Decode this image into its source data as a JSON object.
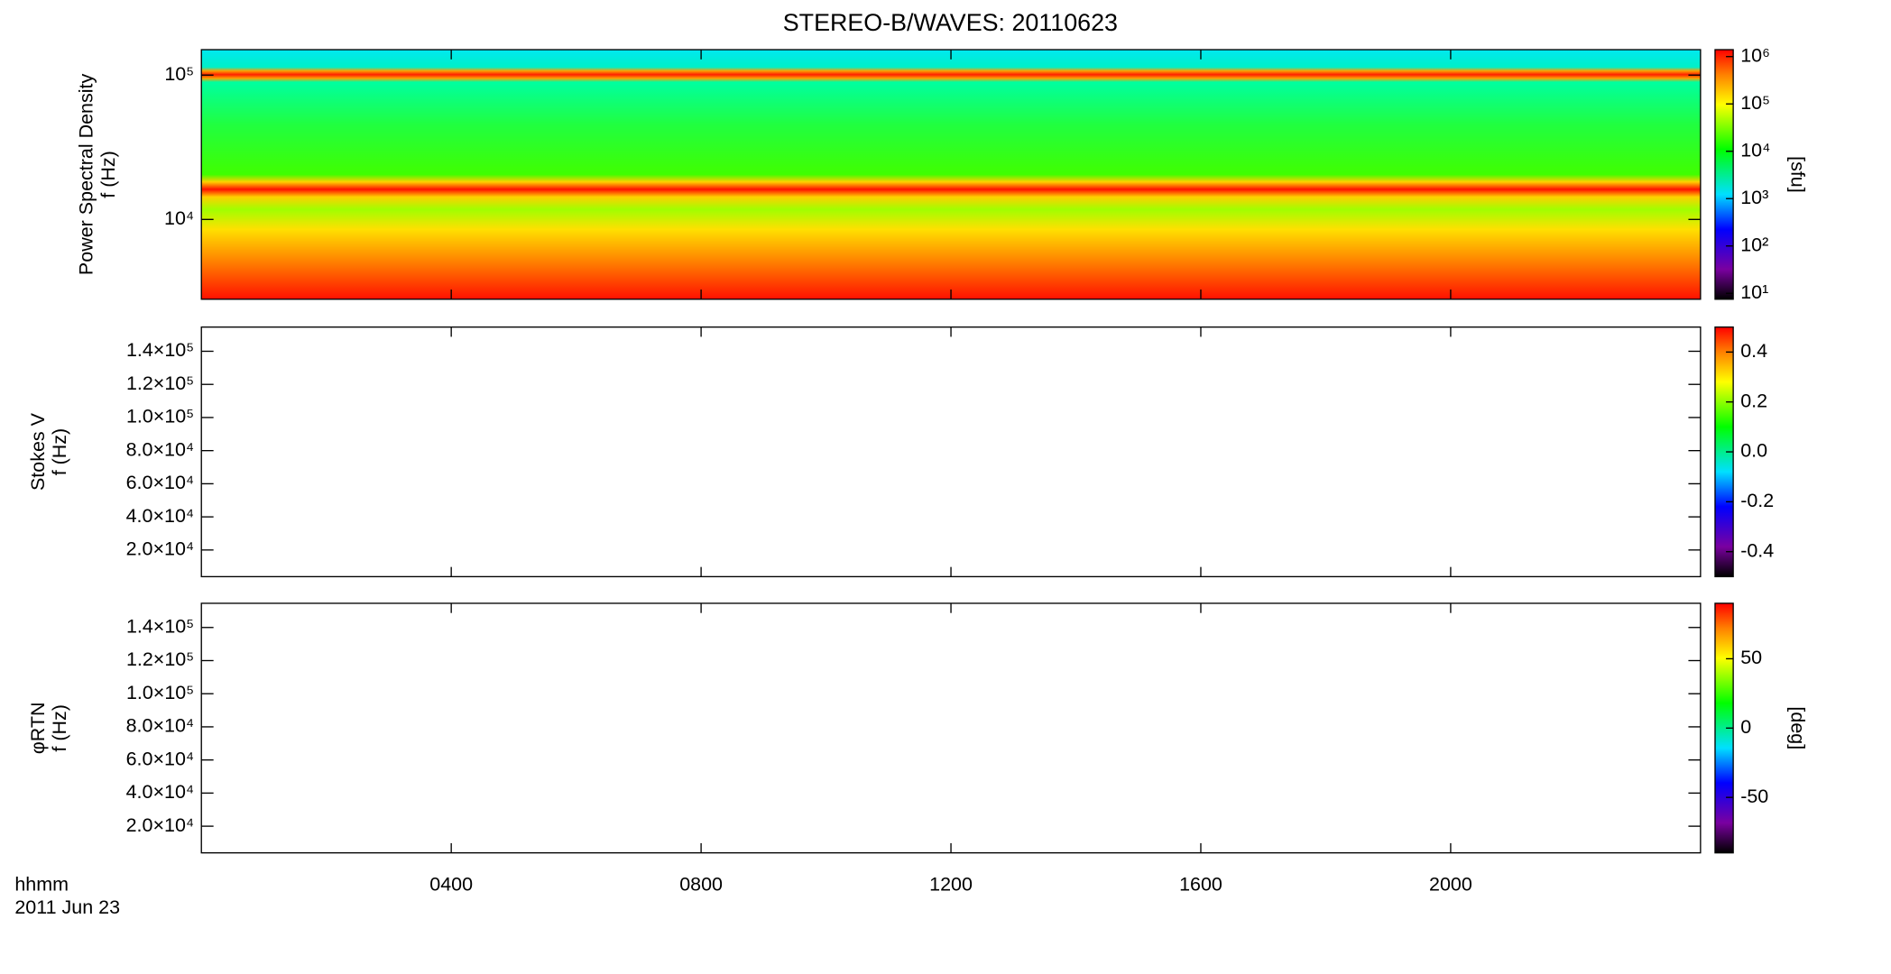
{
  "chart_data": [
    {
      "type": "spectrogram",
      "title": "STEREO-B/WAVES: 20110623",
      "ylabel": [
        "Power Spectral Density",
        "f (Hz)"
      ],
      "ylog": true,
      "ylim": [
        2800,
        150000
      ],
      "yticks": [
        {
          "value": 10000,
          "label": "10⁴"
        },
        {
          "value": 100000,
          "label": "10⁵"
        }
      ],
      "colormap": "rainbow",
      "clog": true,
      "clim": [
        7.5,
        1400000
      ],
      "cticks": [
        {
          "value": 10,
          "label": "10¹"
        },
        {
          "value": 100,
          "label": "10²"
        },
        {
          "value": 1000,
          "label": "10³"
        },
        {
          "value": 10000,
          "label": "10⁴"
        },
        {
          "value": 100000,
          "label": "10⁵"
        },
        {
          "value": 1000000,
          "label": "10⁶"
        }
      ],
      "clabel": "[sfu]"
    },
    {
      "type": "spectrogram",
      "ylabel": [
        "Stokes V",
        "f (Hz)"
      ],
      "ylog": false,
      "ylim": [
        3900,
        154600
      ],
      "yticks": [
        {
          "value": 20000,
          "label": "2.0×10⁴"
        },
        {
          "value": 40000,
          "label": "4.0×10⁴"
        },
        {
          "value": 60000,
          "label": "6.0×10⁴"
        },
        {
          "value": 80000,
          "label": "8.0×10⁴"
        },
        {
          "value": 100000,
          "label": "1.0×10⁵"
        },
        {
          "value": 120000,
          "label": "1.2×10⁵"
        },
        {
          "value": 140000,
          "label": "1.4×10⁵"
        }
      ],
      "colormap": "rainbow",
      "clog": false,
      "clim": [
        -0.5,
        0.5
      ],
      "cticks": [
        -0.4,
        -0.2,
        {
          "value": 0,
          "label": "0.0"
        },
        0.2,
        0.4
      ]
    },
    {
      "type": "spectrogram",
      "ylabel": [
        "φRTN",
        "f (Hz)"
      ],
      "ylog": false,
      "ylim": [
        3900,
        154600
      ],
      "yticks": [
        {
          "value": 20000,
          "label": "2.0×10⁴"
        },
        {
          "value": 40000,
          "label": "4.0×10⁴"
        },
        {
          "value": 60000,
          "label": "6.0×10⁴"
        },
        {
          "value": 80000,
          "label": "8.0×10⁴"
        },
        {
          "value": 100000,
          "label": "1.0×10⁵"
        },
        {
          "value": 120000,
          "label": "1.2×10⁵"
        },
        {
          "value": 140000,
          "label": "1.4×10⁵"
        }
      ],
      "colormap": "rainbow",
      "clog": false,
      "clim": [
        -90,
        90
      ],
      "cticks": [
        -50,
        0,
        50
      ],
      "clabel": "[deg]",
      "xlabel": [
        "hhmm",
        "2011 Jun 23"
      ],
      "xlim": [
        0,
        24
      ],
      "xticks": [
        {
          "value": 4,
          "label": "0400"
        },
        {
          "value": 8,
          "label": "0800"
        },
        {
          "value": 12,
          "label": "1200"
        },
        {
          "value": 16,
          "label": "1600"
        },
        {
          "value": 20,
          "label": "2000"
        }
      ]
    }
  ]
}
